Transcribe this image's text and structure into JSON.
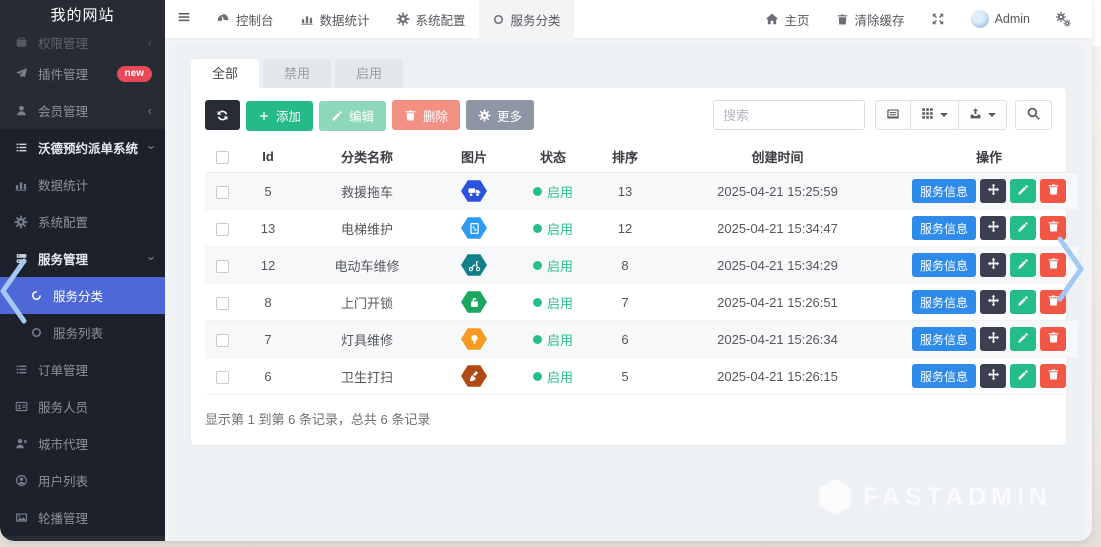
{
  "sidebar": {
    "title": "我的网站",
    "items": [
      {
        "key": "permissions",
        "icon": "briefcase",
        "label": "权限管理",
        "chevron": "left",
        "cut": true
      },
      {
        "key": "plugins",
        "icon": "send",
        "label": "插件管理",
        "badge": "new"
      },
      {
        "key": "members",
        "icon": "user",
        "label": "会员管理",
        "chevron": "left"
      },
      {
        "key": "wode-dispatch-system",
        "icon": "list",
        "label": "沃德预约派单系统",
        "chevron": "down",
        "group": true,
        "section": true
      },
      {
        "key": "data-statistics",
        "icon": "bars",
        "label": "数据统计",
        "section": true
      },
      {
        "key": "system-config",
        "icon": "gear",
        "label": "系统配置",
        "section": true
      },
      {
        "key": "service-management",
        "icon": "server",
        "label": "服务管理",
        "chevron": "down",
        "group": true,
        "section": true
      },
      {
        "key": "service-category",
        "icon": "dot-circle",
        "label": "服务分类",
        "sub": true,
        "active": true,
        "section": true
      },
      {
        "key": "service-list",
        "icon": "circle",
        "label": "服务列表",
        "sub": true,
        "section": true
      },
      {
        "key": "order-management",
        "icon": "list",
        "label": "订单管理",
        "section": true
      },
      {
        "key": "service-staff",
        "icon": "id-card",
        "label": "服务人员",
        "section": true
      },
      {
        "key": "city-agent",
        "icon": "user-x",
        "label": "城市代理",
        "section": true
      },
      {
        "key": "user-list",
        "icon": "user-circle",
        "label": "用户列表",
        "section": true
      },
      {
        "key": "carousel-management",
        "icon": "image",
        "label": "轮播管理",
        "section": true
      }
    ]
  },
  "navbar": {
    "menu_items": [
      {
        "key": "dashboard",
        "icon": "gauge",
        "label": "控制台"
      },
      {
        "key": "data-statistics",
        "icon": "bars",
        "label": "数据统计"
      },
      {
        "key": "system-config",
        "icon": "gear",
        "label": "系统配置"
      },
      {
        "key": "service-category",
        "icon": "circle",
        "label": "服务分类",
        "active": true
      }
    ],
    "right": {
      "home": "主页",
      "clear_cache": "清除缓存",
      "username": "Admin"
    }
  },
  "tabs": [
    {
      "key": "all",
      "label": "全部",
      "active": true
    },
    {
      "key": "disabled",
      "label": "禁用"
    },
    {
      "key": "enabled",
      "label": "启用"
    }
  ],
  "toolbar": {
    "buttons": [
      {
        "name": "refresh",
        "icon": "refresh",
        "label": "",
        "style": "dark"
      },
      {
        "name": "add",
        "icon": "plus",
        "label": "添加",
        "style": "green"
      },
      {
        "name": "edit",
        "icon": "pencil",
        "label": "编辑",
        "style": "green-muted"
      },
      {
        "name": "delete",
        "icon": "trash",
        "label": "删除",
        "style": "red-muted"
      },
      {
        "name": "more",
        "icon": "gearsm",
        "label": "更多",
        "style": "gray"
      }
    ],
    "search_placeholder": "搜索",
    "right_buttons": [
      {
        "name": "toggle-view",
        "icon": "cardview",
        "caret": false
      },
      {
        "name": "columns",
        "icon": "grid",
        "caret": true
      },
      {
        "name": "export",
        "icon": "export",
        "caret": true
      },
      {
        "name": "search",
        "icon": "search",
        "caret": false,
        "solo": true
      }
    ]
  },
  "table": {
    "columns": [
      "Id",
      "分类名称",
      "图片",
      "状态",
      "排序",
      "创建时间",
      "操作"
    ],
    "action_label": "服务信息",
    "rows": [
      {
        "id": "5",
        "name": "救援拖车",
        "icon": "truck",
        "icon_color": "#2a52df",
        "status": "启用",
        "sort": "13",
        "created": "2025-04-21 15:25:59"
      },
      {
        "id": "13",
        "name": "电梯维护",
        "icon": "elevator",
        "icon_color": "#2e9bf2",
        "status": "启用",
        "sort": "12",
        "created": "2025-04-21 15:34:47"
      },
      {
        "id": "12",
        "name": "电动车维修",
        "icon": "scooter",
        "icon_color": "#0f7f8b",
        "status": "启用",
        "sort": "8",
        "created": "2025-04-21 15:34:29"
      },
      {
        "id": "8",
        "name": "上门开锁",
        "icon": "lock",
        "icon_color": "#1ba75d",
        "status": "启用",
        "sort": "7",
        "created": "2025-04-21 15:26:51"
      },
      {
        "id": "7",
        "name": "灯具维修",
        "icon": "bulb",
        "icon_color": "#f79b22",
        "status": "启用",
        "sort": "6",
        "created": "2025-04-21 15:26:34"
      },
      {
        "id": "6",
        "name": "卫生打扫",
        "icon": "broom",
        "icon_color": "#b14a12",
        "status": "启用",
        "sort": "5",
        "created": "2025-04-21 15:26:15"
      }
    ]
  },
  "footer": {
    "summary": "显示第 1 到第 6 条记录，总共 6 条记录"
  },
  "watermark": {
    "text": "FASTADMIN"
  },
  "colors": {
    "accent": "#4e68d9",
    "green": "#26b98a",
    "red": "#f25746",
    "blue": "#2f8bea",
    "status_green": "#26bf8c"
  }
}
